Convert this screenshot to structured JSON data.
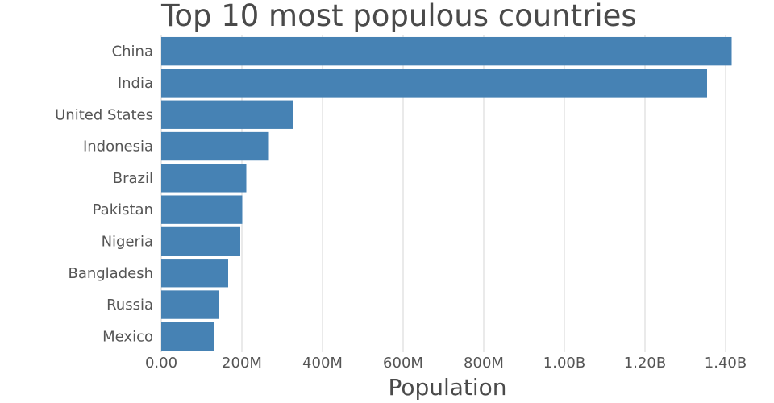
{
  "chart_data": {
    "type": "bar",
    "orientation": "horizontal",
    "title": "Top 10 most populous countries",
    "xlabel": "Population",
    "ylabel": "",
    "categories": [
      "China",
      "India",
      "United States",
      "Indonesia",
      "Brazil",
      "Pakistan",
      "Nigeria",
      "Bangladesh",
      "Russia",
      "Mexico"
    ],
    "values": [
      1415000000,
      1354000000,
      327000000,
      267000000,
      211000000,
      201000000,
      196000000,
      166000000,
      144000000,
      131000000
    ],
    "xlim": [
      0,
      1420000000
    ],
    "xticks": [
      0,
      200000000,
      400000000,
      600000000,
      800000000,
      1000000000,
      1200000000,
      1400000000
    ],
    "xtick_labels": [
      "0.00",
      "200M",
      "400M",
      "600M",
      "800M",
      "1.00B",
      "1.20B",
      "1.40B"
    ],
    "grid": "vertical",
    "bar_color": "#4682b4"
  }
}
